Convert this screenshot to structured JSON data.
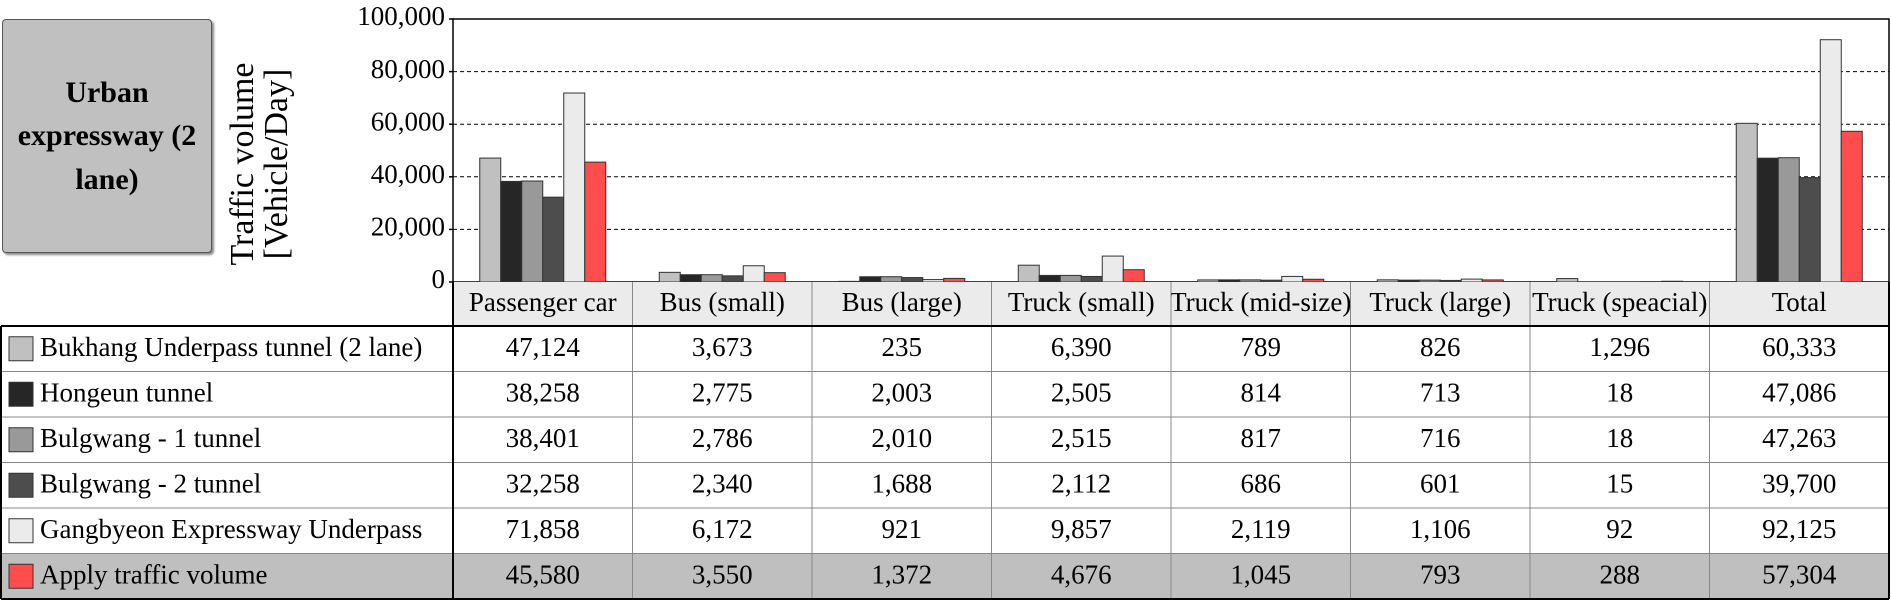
{
  "chart_data": {
    "type": "bar",
    "title": "Urban expressway (2 lane)",
    "y_label": "Traffic volume [Vehicle/Day]",
    "categories": [
      "Passenger car",
      "Bus (small)",
      "Bus (large)",
      "Truck (small)",
      "Truck (mid-size)",
      "Truck (large)",
      "Truck (speacial)",
      "Total"
    ],
    "series": [
      {
        "name": "Bukhang Underpass tunnel (2 lane)",
        "color": "#c0c0c0",
        "values": [
          47124,
          3673,
          235,
          6390,
          789,
          826,
          1296,
          60333
        ],
        "value_labels": [
          "47,124",
          "3,673",
          "235",
          "6,390",
          "789",
          "826",
          "1,296",
          "60,333"
        ]
      },
      {
        "name": "Hongeun tunnel",
        "color": "#262626",
        "values": [
          38258,
          2775,
          2003,
          2505,
          814,
          713,
          18,
          47086
        ],
        "value_labels": [
          "38,258",
          "2,775",
          "2,003",
          "2,505",
          "814",
          "713",
          "18",
          "47,086"
        ]
      },
      {
        "name": "Bulgwang - 1 tunnel",
        "color": "#999999",
        "values": [
          38401,
          2786,
          2010,
          2515,
          817,
          716,
          18,
          47263
        ],
        "value_labels": [
          "38,401",
          "2,786",
          "2,010",
          "2,515",
          "817",
          "716",
          "18",
          "47,263"
        ]
      },
      {
        "name": "Bulgwang - 2 tunnel",
        "color": "#4d4d4d",
        "values": [
          32258,
          2340,
          1688,
          2112,
          686,
          601,
          15,
          39700
        ],
        "value_labels": [
          "32,258",
          "2,340",
          "1,688",
          "2,112",
          "686",
          "601",
          "15",
          "39,700"
        ]
      },
      {
        "name": "Gangbyeon Expressway Underpass",
        "color": "#ebebeb",
        "values": [
          71858,
          6172,
          921,
          9857,
          2119,
          1106,
          92,
          92125
        ],
        "value_labels": [
          "71,858",
          "6,172",
          "921",
          "9,857",
          "2,119",
          "1,106",
          "92",
          "92,125"
        ]
      },
      {
        "name": "Apply traffic volume",
        "color": "#ff4d4d",
        "values": [
          45580,
          3550,
          1372,
          4676,
          1045,
          793,
          288,
          57304
        ],
        "value_labels": [
          "45,580",
          "3,550",
          "1,372",
          "4,676",
          "1,045",
          "793",
          "288",
          "57,304"
        ]
      }
    ],
    "ylim": [
      0,
      100000
    ],
    "yticks": [
      0,
      {
        "value": 20000,
        "label": "20,000"
      },
      {
        "value": 40000,
        "label": "40,000"
      },
      {
        "value": 60000,
        "label": "60,000"
      },
      {
        "value": 80000,
        "label": "80,000"
      },
      {
        "value": 100000,
        "label": "100,000"
      }
    ],
    "grid": true
  }
}
